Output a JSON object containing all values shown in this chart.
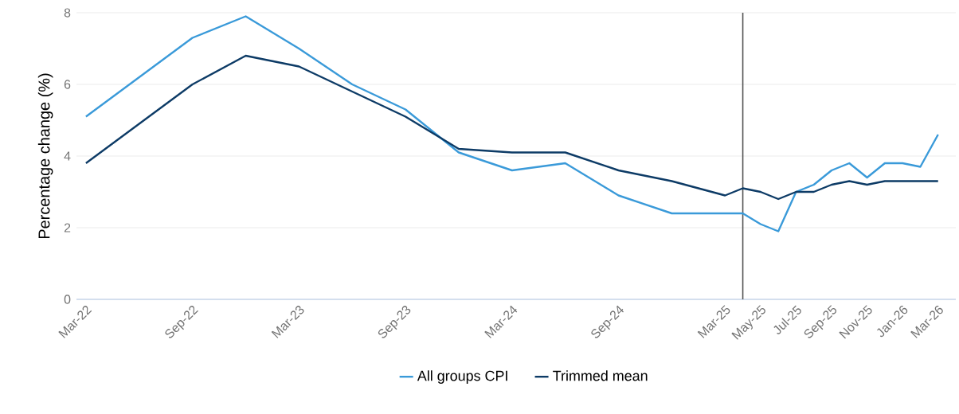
{
  "chart_data": {
    "type": "line",
    "ylabel": "Percentage change (%)",
    "x": [
      "2022-03",
      "2022-09",
      "2022-12",
      "2023-03",
      "2023-06",
      "2023-09",
      "2023-12",
      "2024-03",
      "2024-06",
      "2024-09",
      "2024-12",
      "2025-03",
      "2025-04",
      "2025-05",
      "2025-06",
      "2025-07",
      "2025-08",
      "2025-09",
      "2025-10",
      "2025-11",
      "2025-12",
      "2026-01",
      "2026-02",
      "2026-03"
    ],
    "series": [
      {
        "name": "All groups CPI",
        "color": "#3a9ad9",
        "values": [
          5.1,
          7.3,
          7.9,
          7.0,
          6.0,
          5.3,
          4.1,
          3.6,
          3.8,
          2.9,
          2.4,
          2.4,
          2.4,
          2.1,
          1.9,
          3.0,
          3.2,
          3.6,
          3.8,
          3.4,
          3.8,
          3.8,
          3.7,
          4.6
        ]
      },
      {
        "name": "Trimmed mean",
        "color": "#0d3b66",
        "values": [
          3.8,
          6.0,
          6.8,
          6.5,
          5.8,
          5.1,
          4.2,
          4.1,
          4.1,
          3.6,
          3.3,
          2.9,
          3.1,
          3.0,
          2.8,
          3.0,
          3.0,
          3.2,
          3.3,
          3.2,
          3.3,
          3.3,
          3.3,
          3.3
        ]
      }
    ],
    "xlim": [
      "2022-02-15",
      "2026-04-01"
    ],
    "xticks": [
      {
        "value": "2022-03",
        "label": "Mar-22"
      },
      {
        "value": "2022-09",
        "label": "Sep-22"
      },
      {
        "value": "2023-03",
        "label": "Mar-23"
      },
      {
        "value": "2023-09",
        "label": "Sep-23"
      },
      {
        "value": "2024-03",
        "label": "Mar-24"
      },
      {
        "value": "2024-09",
        "label": "Sep-24"
      },
      {
        "value": "2025-03",
        "label": "Mar-25"
      },
      {
        "value": "2025-05",
        "label": "May-25"
      },
      {
        "value": "2025-07",
        "label": "Jul-25"
      },
      {
        "value": "2025-09",
        "label": "Sep-25"
      },
      {
        "value": "2025-11",
        "label": "Nov-25"
      },
      {
        "value": "2026-01",
        "label": "Jan-26"
      },
      {
        "value": "2026-03",
        "label": "Mar-26"
      }
    ],
    "ylim": [
      0,
      8
    ],
    "yticks": [
      0,
      2,
      4,
      6,
      8
    ],
    "ref_lines": [
      {
        "axis": "x",
        "value": "2025-04",
        "color": "#555555"
      }
    ],
    "grid": "y",
    "legend": "bottom",
    "marker": "none",
    "line_style": "solid"
  }
}
